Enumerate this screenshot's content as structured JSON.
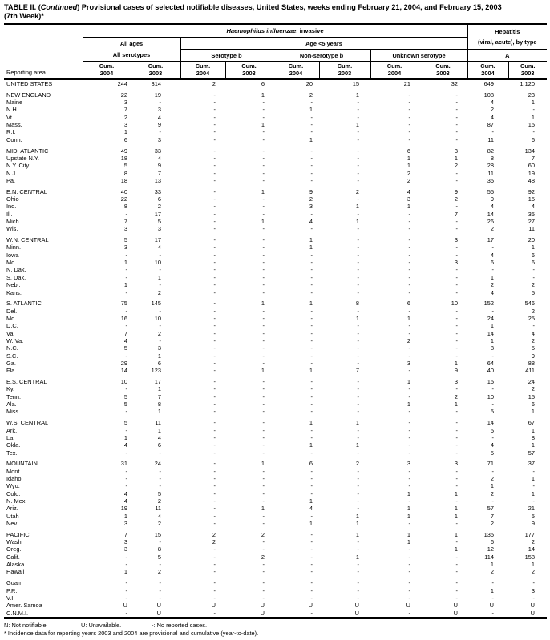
{
  "title": {
    "prefix": "TABLE II. (",
    "continued": "Continued",
    "suffix": ") Provisional cases of selected notifiable diseases, United States, weeks ending February 21, 2004, and February 15, 2003",
    "line2": "(7th Week)*"
  },
  "header": {
    "reporting_area": "Reporting area",
    "hi_italic": "Haemophilus influenzae",
    "hi_rest": ", invasive",
    "hepatitis_line1": "Hepatitis",
    "hepatitis_line2": "(viral, acute), by type",
    "all_ages": "All ages",
    "all_serotypes": "All serotypes",
    "age_lt5": "Age <5 years",
    "serotype_b": "Serotype b",
    "non_serotype_b": "Non-serotype b",
    "unknown_serotype": "Unknown serotype",
    "hep_a": "A"
  },
  "table": {
    "cum_columns": [
      {
        "line1": "Cum.",
        "line2": "2004"
      },
      {
        "line1": "Cum.",
        "line2": "2003"
      },
      {
        "line1": "Cum.",
        "line2": "2004"
      },
      {
        "line1": "Cum.",
        "line2": "2003"
      },
      {
        "line1": "Cum.",
        "line2": "2004"
      },
      {
        "line1": "Cum.",
        "line2": "2003"
      },
      {
        "line1": "Cum.",
        "line2": "2004"
      },
      {
        "line1": "Cum.",
        "line2": "2003"
      },
      {
        "line1": "Cum.",
        "line2": "2004"
      },
      {
        "line1": "Cum.",
        "line2": "2003"
      }
    ],
    "rows": [
      {
        "area": "UNITED STATES",
        "values": [
          "244",
          "314",
          "2",
          "6",
          "20",
          "15",
          "21",
          "32",
          "649",
          "1,120"
        ]
      },
      {
        "area": "NEW ENGLAND",
        "gap_before": true,
        "values": [
          "22",
          "19",
          "-",
          "1",
          "2",
          "1",
          "-",
          "-",
          "108",
          "23"
        ]
      },
      {
        "area": "Maine",
        "values": [
          "3",
          "-",
          "-",
          "-",
          "-",
          "-",
          "-",
          "-",
          "4",
          "1"
        ]
      },
      {
        "area": "N.H.",
        "values": [
          "7",
          "3",
          "-",
          "-",
          "1",
          "-",
          "-",
          "-",
          "2",
          "-"
        ]
      },
      {
        "area": "Vt.",
        "values": [
          "2",
          "4",
          "-",
          "-",
          "-",
          "-",
          "-",
          "-",
          "4",
          "1"
        ]
      },
      {
        "area": "Mass.",
        "values": [
          "3",
          "9",
          "-",
          "1",
          "-",
          "1",
          "-",
          "-",
          "87",
          "15"
        ]
      },
      {
        "area": "R.I.",
        "values": [
          "1",
          "-",
          "-",
          "-",
          "-",
          "-",
          "-",
          "-",
          "-",
          "-"
        ]
      },
      {
        "area": "Conn.",
        "values": [
          "6",
          "3",
          "-",
          "-",
          "1",
          "-",
          "-",
          "-",
          "11",
          "6"
        ]
      },
      {
        "area": "MID. ATLANTIC",
        "gap_before": true,
        "values": [
          "49",
          "33",
          "-",
          "-",
          "-",
          "-",
          "6",
          "3",
          "82",
          "134"
        ]
      },
      {
        "area": "Upstate N.Y.",
        "values": [
          "18",
          "4",
          "-",
          "-",
          "-",
          "-",
          "1",
          "1",
          "8",
          "7"
        ]
      },
      {
        "area": "N.Y. City",
        "values": [
          "5",
          "9",
          "-",
          "-",
          "-",
          "-",
          "1",
          "2",
          "28",
          "60"
        ]
      },
      {
        "area": "N.J.",
        "values": [
          "8",
          "7",
          "-",
          "-",
          "-",
          "-",
          "2",
          "-",
          "11",
          "19"
        ]
      },
      {
        "area": "Pa.",
        "values": [
          "18",
          "13",
          "-",
          "-",
          "-",
          "-",
          "2",
          "-",
          "35",
          "48"
        ]
      },
      {
        "area": "E.N. CENTRAL",
        "gap_before": true,
        "values": [
          "40",
          "33",
          "-",
          "1",
          "9",
          "2",
          "4",
          "9",
          "55",
          "92"
        ]
      },
      {
        "area": "Ohio",
        "values": [
          "22",
          "6",
          "-",
          "-",
          "2",
          "-",
          "3",
          "2",
          "9",
          "15"
        ]
      },
      {
        "area": "Ind.",
        "values": [
          "8",
          "2",
          "-",
          "-",
          "3",
          "1",
          "1",
          "-",
          "4",
          "4"
        ]
      },
      {
        "area": "Ill.",
        "values": [
          "-",
          "17",
          "-",
          "-",
          "-",
          "-",
          "-",
          "7",
          "14",
          "35"
        ]
      },
      {
        "area": "Mich.",
        "values": [
          "7",
          "5",
          "-",
          "1",
          "4",
          "1",
          "-",
          "-",
          "26",
          "27"
        ]
      },
      {
        "area": "Wis.",
        "values": [
          "3",
          "3",
          "-",
          "-",
          "-",
          "-",
          "-",
          "-",
          "2",
          "11"
        ]
      },
      {
        "area": "W.N. CENTRAL",
        "gap_before": true,
        "values": [
          "5",
          "17",
          "-",
          "-",
          "1",
          "-",
          "-",
          "3",
          "17",
          "20"
        ]
      },
      {
        "area": "Minn.",
        "values": [
          "3",
          "4",
          "-",
          "-",
          "1",
          "-",
          "-",
          "-",
          "-",
          "1"
        ]
      },
      {
        "area": "Iowa",
        "values": [
          "-",
          "-",
          "-",
          "-",
          "-",
          "-",
          "-",
          "-",
          "4",
          "6"
        ]
      },
      {
        "area": "Mo.",
        "values": [
          "1",
          "10",
          "-",
          "-",
          "-",
          "-",
          "-",
          "3",
          "6",
          "6"
        ]
      },
      {
        "area": "N. Dak.",
        "values": [
          "-",
          "-",
          "-",
          "-",
          "-",
          "-",
          "-",
          "-",
          "-",
          "-"
        ]
      },
      {
        "area": "S. Dak.",
        "values": [
          "-",
          "1",
          "-",
          "-",
          "-",
          "-",
          "-",
          "-",
          "1",
          "-"
        ]
      },
      {
        "area": "Nebr.",
        "values": [
          "1",
          "-",
          "-",
          "-",
          "-",
          "-",
          "-",
          "-",
          "2",
          "2"
        ]
      },
      {
        "area": "Kans.",
        "values": [
          "-",
          "2",
          "-",
          "-",
          "-",
          "-",
          "-",
          "-",
          "4",
          "5"
        ]
      },
      {
        "area": "S. ATLANTIC",
        "gap_before": true,
        "values": [
          "75",
          "145",
          "-",
          "1",
          "1",
          "8",
          "6",
          "10",
          "152",
          "546"
        ]
      },
      {
        "area": "Del.",
        "values": [
          "-",
          "-",
          "-",
          "-",
          "-",
          "-",
          "-",
          "-",
          "-",
          "2"
        ]
      },
      {
        "area": "Md.",
        "values": [
          "16",
          "10",
          "-",
          "-",
          "-",
          "1",
          "1",
          "-",
          "24",
          "25"
        ]
      },
      {
        "area": "D.C.",
        "values": [
          "-",
          "-",
          "-",
          "-",
          "-",
          "-",
          "-",
          "-",
          "1",
          "-"
        ]
      },
      {
        "area": "Va.",
        "values": [
          "7",
          "2",
          "-",
          "-",
          "-",
          "-",
          "-",
          "-",
          "14",
          "4"
        ]
      },
      {
        "area": "W. Va.",
        "values": [
          "4",
          "-",
          "-",
          "-",
          "-",
          "-",
          "2",
          "-",
          "1",
          "2"
        ]
      },
      {
        "area": "N.C.",
        "values": [
          "5",
          "3",
          "-",
          "-",
          "-",
          "-",
          "-",
          "-",
          "8",
          "5"
        ]
      },
      {
        "area": "S.C.",
        "values": [
          "-",
          "1",
          "-",
          "-",
          "-",
          "-",
          "-",
          "-",
          "-",
          "9"
        ]
      },
      {
        "area": "Ga.",
        "values": [
          "29",
          "6",
          "-",
          "-",
          "-",
          "-",
          "3",
          "1",
          "64",
          "88"
        ]
      },
      {
        "area": "Fla.",
        "values": [
          "14",
          "123",
          "-",
          "1",
          "1",
          "7",
          "-",
          "9",
          "40",
          "411"
        ]
      },
      {
        "area": "E.S. CENTRAL",
        "gap_before": true,
        "values": [
          "10",
          "17",
          "-",
          "-",
          "-",
          "-",
          "1",
          "3",
          "15",
          "24"
        ]
      },
      {
        "area": "Ky.",
        "values": [
          "-",
          "1",
          "-",
          "-",
          "-",
          "-",
          "-",
          "-",
          "-",
          "2"
        ]
      },
      {
        "area": "Tenn.",
        "values": [
          "5",
          "7",
          "-",
          "-",
          "-",
          "-",
          "-",
          "2",
          "10",
          "15"
        ]
      },
      {
        "area": "Ala.",
        "values": [
          "5",
          "8",
          "-",
          "-",
          "-",
          "-",
          "1",
          "1",
          "-",
          "6"
        ]
      },
      {
        "area": "Miss.",
        "values": [
          "-",
          "1",
          "-",
          "-",
          "-",
          "-",
          "-",
          "-",
          "5",
          "1"
        ]
      },
      {
        "area": "W.S. CENTRAL",
        "gap_before": true,
        "values": [
          "5",
          "11",
          "-",
          "-",
          "1",
          "1",
          "-",
          "-",
          "14",
          "67"
        ]
      },
      {
        "area": "Ark.",
        "values": [
          "-",
          "1",
          "-",
          "-",
          "-",
          "-",
          "-",
          "-",
          "5",
          "1"
        ]
      },
      {
        "area": "La.",
        "values": [
          "1",
          "4",
          "-",
          "-",
          "-",
          "-",
          "-",
          "-",
          "-",
          "8"
        ]
      },
      {
        "area": "Okla.",
        "values": [
          "4",
          "6",
          "-",
          "-",
          "1",
          "1",
          "-",
          "-",
          "4",
          "1"
        ]
      },
      {
        "area": "Tex.",
        "values": [
          "-",
          "-",
          "-",
          "-",
          "-",
          "-",
          "-",
          "-",
          "5",
          "57"
        ]
      },
      {
        "area": "MOUNTAIN",
        "gap_before": true,
        "values": [
          "31",
          "24",
          "-",
          "1",
          "6",
          "2",
          "3",
          "3",
          "71",
          "37"
        ]
      },
      {
        "area": "Mont.",
        "values": [
          "-",
          "-",
          "-",
          "-",
          "-",
          "-",
          "-",
          "-",
          "-",
          "-"
        ]
      },
      {
        "area": "Idaho",
        "values": [
          "-",
          "-",
          "-",
          "-",
          "-",
          "-",
          "-",
          "-",
          "2",
          "1"
        ]
      },
      {
        "area": "Wyo.",
        "values": [
          "-",
          "-",
          "-",
          "-",
          "-",
          "-",
          "-",
          "-",
          "1",
          "-"
        ]
      },
      {
        "area": "Colo.",
        "values": [
          "4",
          "5",
          "-",
          "-",
          "-",
          "-",
          "1",
          "1",
          "2",
          "1"
        ]
      },
      {
        "area": "N. Mex.",
        "values": [
          "4",
          "2",
          "-",
          "-",
          "1",
          "-",
          "-",
          "-",
          "-",
          "-"
        ]
      },
      {
        "area": "Ariz.",
        "values": [
          "19",
          "11",
          "-",
          "1",
          "4",
          "-",
          "1",
          "1",
          "57",
          "21"
        ]
      },
      {
        "area": "Utah",
        "values": [
          "1",
          "4",
          "-",
          "-",
          "-",
          "1",
          "1",
          "1",
          "7",
          "5"
        ]
      },
      {
        "area": "Nev.",
        "values": [
          "3",
          "2",
          "-",
          "-",
          "1",
          "1",
          "-",
          "-",
          "2",
          "9"
        ]
      },
      {
        "area": "PACIFIC",
        "gap_before": true,
        "values": [
          "7",
          "15",
          "2",
          "2",
          "-",
          "1",
          "1",
          "1",
          "135",
          "177"
        ]
      },
      {
        "area": "Wash.",
        "values": [
          "3",
          "-",
          "2",
          "-",
          "-",
          "-",
          "1",
          "-",
          "6",
          "2"
        ]
      },
      {
        "area": "Oreg.",
        "values": [
          "3",
          "8",
          "-",
          "-",
          "-",
          "-",
          "-",
          "1",
          "12",
          "14"
        ]
      },
      {
        "area": "Calif.",
        "values": [
          "-",
          "5",
          "-",
          "2",
          "-",
          "1",
          "-",
          "-",
          "114",
          "158"
        ]
      },
      {
        "area": "Alaska",
        "values": [
          "-",
          "-",
          "-",
          "-",
          "-",
          "-",
          "-",
          "-",
          "1",
          "1"
        ]
      },
      {
        "area": "Hawaii",
        "values": [
          "1",
          "2",
          "-",
          "-",
          "-",
          "-",
          "-",
          "-",
          "2",
          "2"
        ]
      },
      {
        "area": "Guam",
        "gap_before": true,
        "values": [
          "-",
          "-",
          "-",
          "-",
          "-",
          "-",
          "-",
          "-",
          "-",
          "-"
        ]
      },
      {
        "area": "P.R.",
        "values": [
          "-",
          "-",
          "-",
          "-",
          "-",
          "-",
          "-",
          "-",
          "1",
          "3"
        ]
      },
      {
        "area": "V.I.",
        "values": [
          "-",
          "-",
          "-",
          "-",
          "-",
          "-",
          "-",
          "-",
          "-",
          "-"
        ]
      },
      {
        "area": "Amer. Samoa",
        "values": [
          "U",
          "U",
          "U",
          "U",
          "U",
          "U",
          "U",
          "U",
          "U",
          "U"
        ]
      },
      {
        "area": "C.N.M.I.",
        "values": [
          "-",
          "U",
          "-",
          "U",
          "-",
          "U",
          "-",
          "U",
          "-",
          "U"
        ]
      }
    ]
  },
  "footnotes": {
    "legend": [
      "N: Not notifiable.",
      "U: Unavailable.",
      "-: No reported cases."
    ],
    "incidence_note": "* Incidence data for reporting years 2003 and 2004 are provisional and cumulative (year-to-date)."
  }
}
